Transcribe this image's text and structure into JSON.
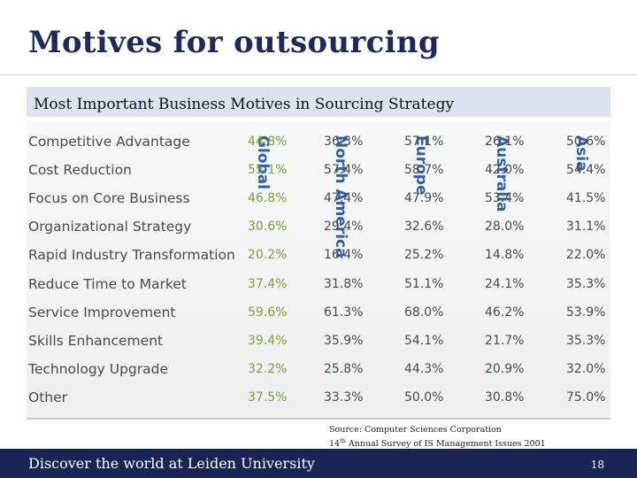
{
  "slide": {
    "title": "Motives for outsourcing",
    "subtitle": "Most Important Business Motives in Sourcing Strategy"
  },
  "table": {
    "regions": [
      "Global",
      "North America",
      "Europe",
      "Australia",
      "Asia"
    ],
    "rows": [
      {
        "label": "Competitive Advantage",
        "values": [
          "44.8%",
          "36.3%",
          "57.1%",
          "26.1%",
          "50.6%"
        ]
      },
      {
        "label": "Cost Reduction",
        "values": [
          "55.1%",
          "57.4%",
          "58.7%",
          "42.0%",
          "54.4%"
        ]
      },
      {
        "label": "Focus on Core Business",
        "values": [
          "46.8%",
          "47.4%",
          "47.9%",
          "53.4%",
          "41.5%"
        ]
      },
      {
        "label": "Organizational Strategy",
        "values": [
          "30.6%",
          "29.4%",
          "32.6%",
          "28.0%",
          "31.1%"
        ]
      },
      {
        "label": "Rapid Industry Transformation",
        "values": [
          "20.2%",
          "16.4%",
          "25.2%",
          "14.8%",
          "22.0%"
        ]
      },
      {
        "label": "Reduce Time to Market",
        "values": [
          "37.4%",
          "31.8%",
          "51.1%",
          "24.1%",
          "35.3%"
        ]
      },
      {
        "label": "Service Improvement",
        "values": [
          "59.6%",
          "61.3%",
          "68.0%",
          "46.2%",
          "53.9%"
        ]
      },
      {
        "label": "Skills Enhancement",
        "values": [
          "39.4%",
          "35.9%",
          "54.1%",
          "21.7%",
          "35.3%"
        ]
      },
      {
        "label": "Technology Upgrade",
        "values": [
          "32.2%",
          "25.8%",
          "44.3%",
          "20.9%",
          "32.0%"
        ]
      },
      {
        "label": "Other",
        "values": [
          "37.5%",
          "33.3%",
          "50.0%",
          "30.8%",
          "75.0%"
        ]
      }
    ]
  },
  "source": {
    "line1": "Source: Computer Sciences Corporation",
    "line2_prefix": "14",
    "line2_sup": "th",
    "line2_rest": " Annual Survey of IS Management Issues 2001"
  },
  "footer": {
    "text": "Discover the world at Leiden University",
    "page": "18"
  },
  "colors": {
    "title": "#1f2a5a",
    "region_header": "#2f5fa9",
    "global_values": "#79a43a",
    "footer_bar": "#1a2457",
    "subtitle_band": "#dde2ee"
  }
}
